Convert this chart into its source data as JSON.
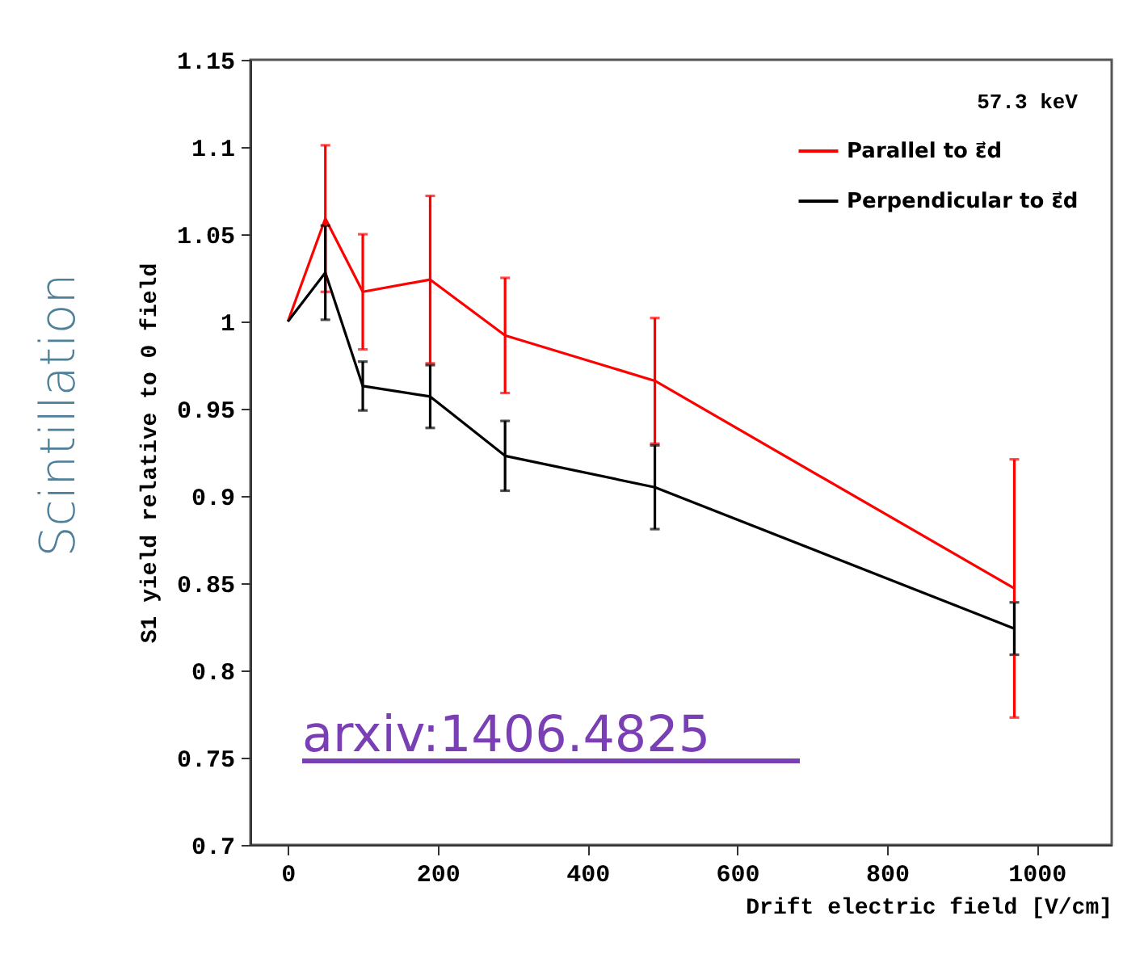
{
  "chart_data": {
    "type": "line",
    "xlabel": "Drift electric field [V/cm]",
    "ylabel": "S1 yield relative to 0 field",
    "legend_title": "57.3 keV",
    "x": [
      0,
      50,
      100,
      190,
      290,
      490,
      970
    ],
    "series": [
      {
        "name": "Parallel to ε⃗d",
        "color": "#ff0000",
        "values": [
          1.0,
          1.059,
          1.017,
          1.024,
          0.992,
          0.966,
          0.847
        ],
        "errors": [
          null,
          0.042,
          0.033,
          0.048,
          0.033,
          0.036,
          0.074
        ]
      },
      {
        "name": "Perpendicular to ε⃗d",
        "color": "#000000",
        "values": [
          1.0,
          1.028,
          0.963,
          0.957,
          0.923,
          0.905,
          0.824
        ],
        "errors": [
          null,
          0.027,
          0.014,
          0.018,
          0.02,
          0.024,
          0.015
        ]
      }
    ],
    "xlim": [
      -50,
      1100
    ],
    "xticks": [
      0,
      200,
      400,
      600,
      800,
      1000
    ],
    "ylim": [
      0.7,
      1.15
    ],
    "yticks": [
      0.7,
      0.75,
      0.8,
      0.85,
      0.9,
      0.95,
      1,
      1.05,
      1.1,
      1.15
    ],
    "annotations": [
      "Scintillation",
      "arxiv:1406.4825"
    ],
    "legend": "top right",
    "grid": false,
    "marker": "none",
    "line_style": "solid"
  }
}
